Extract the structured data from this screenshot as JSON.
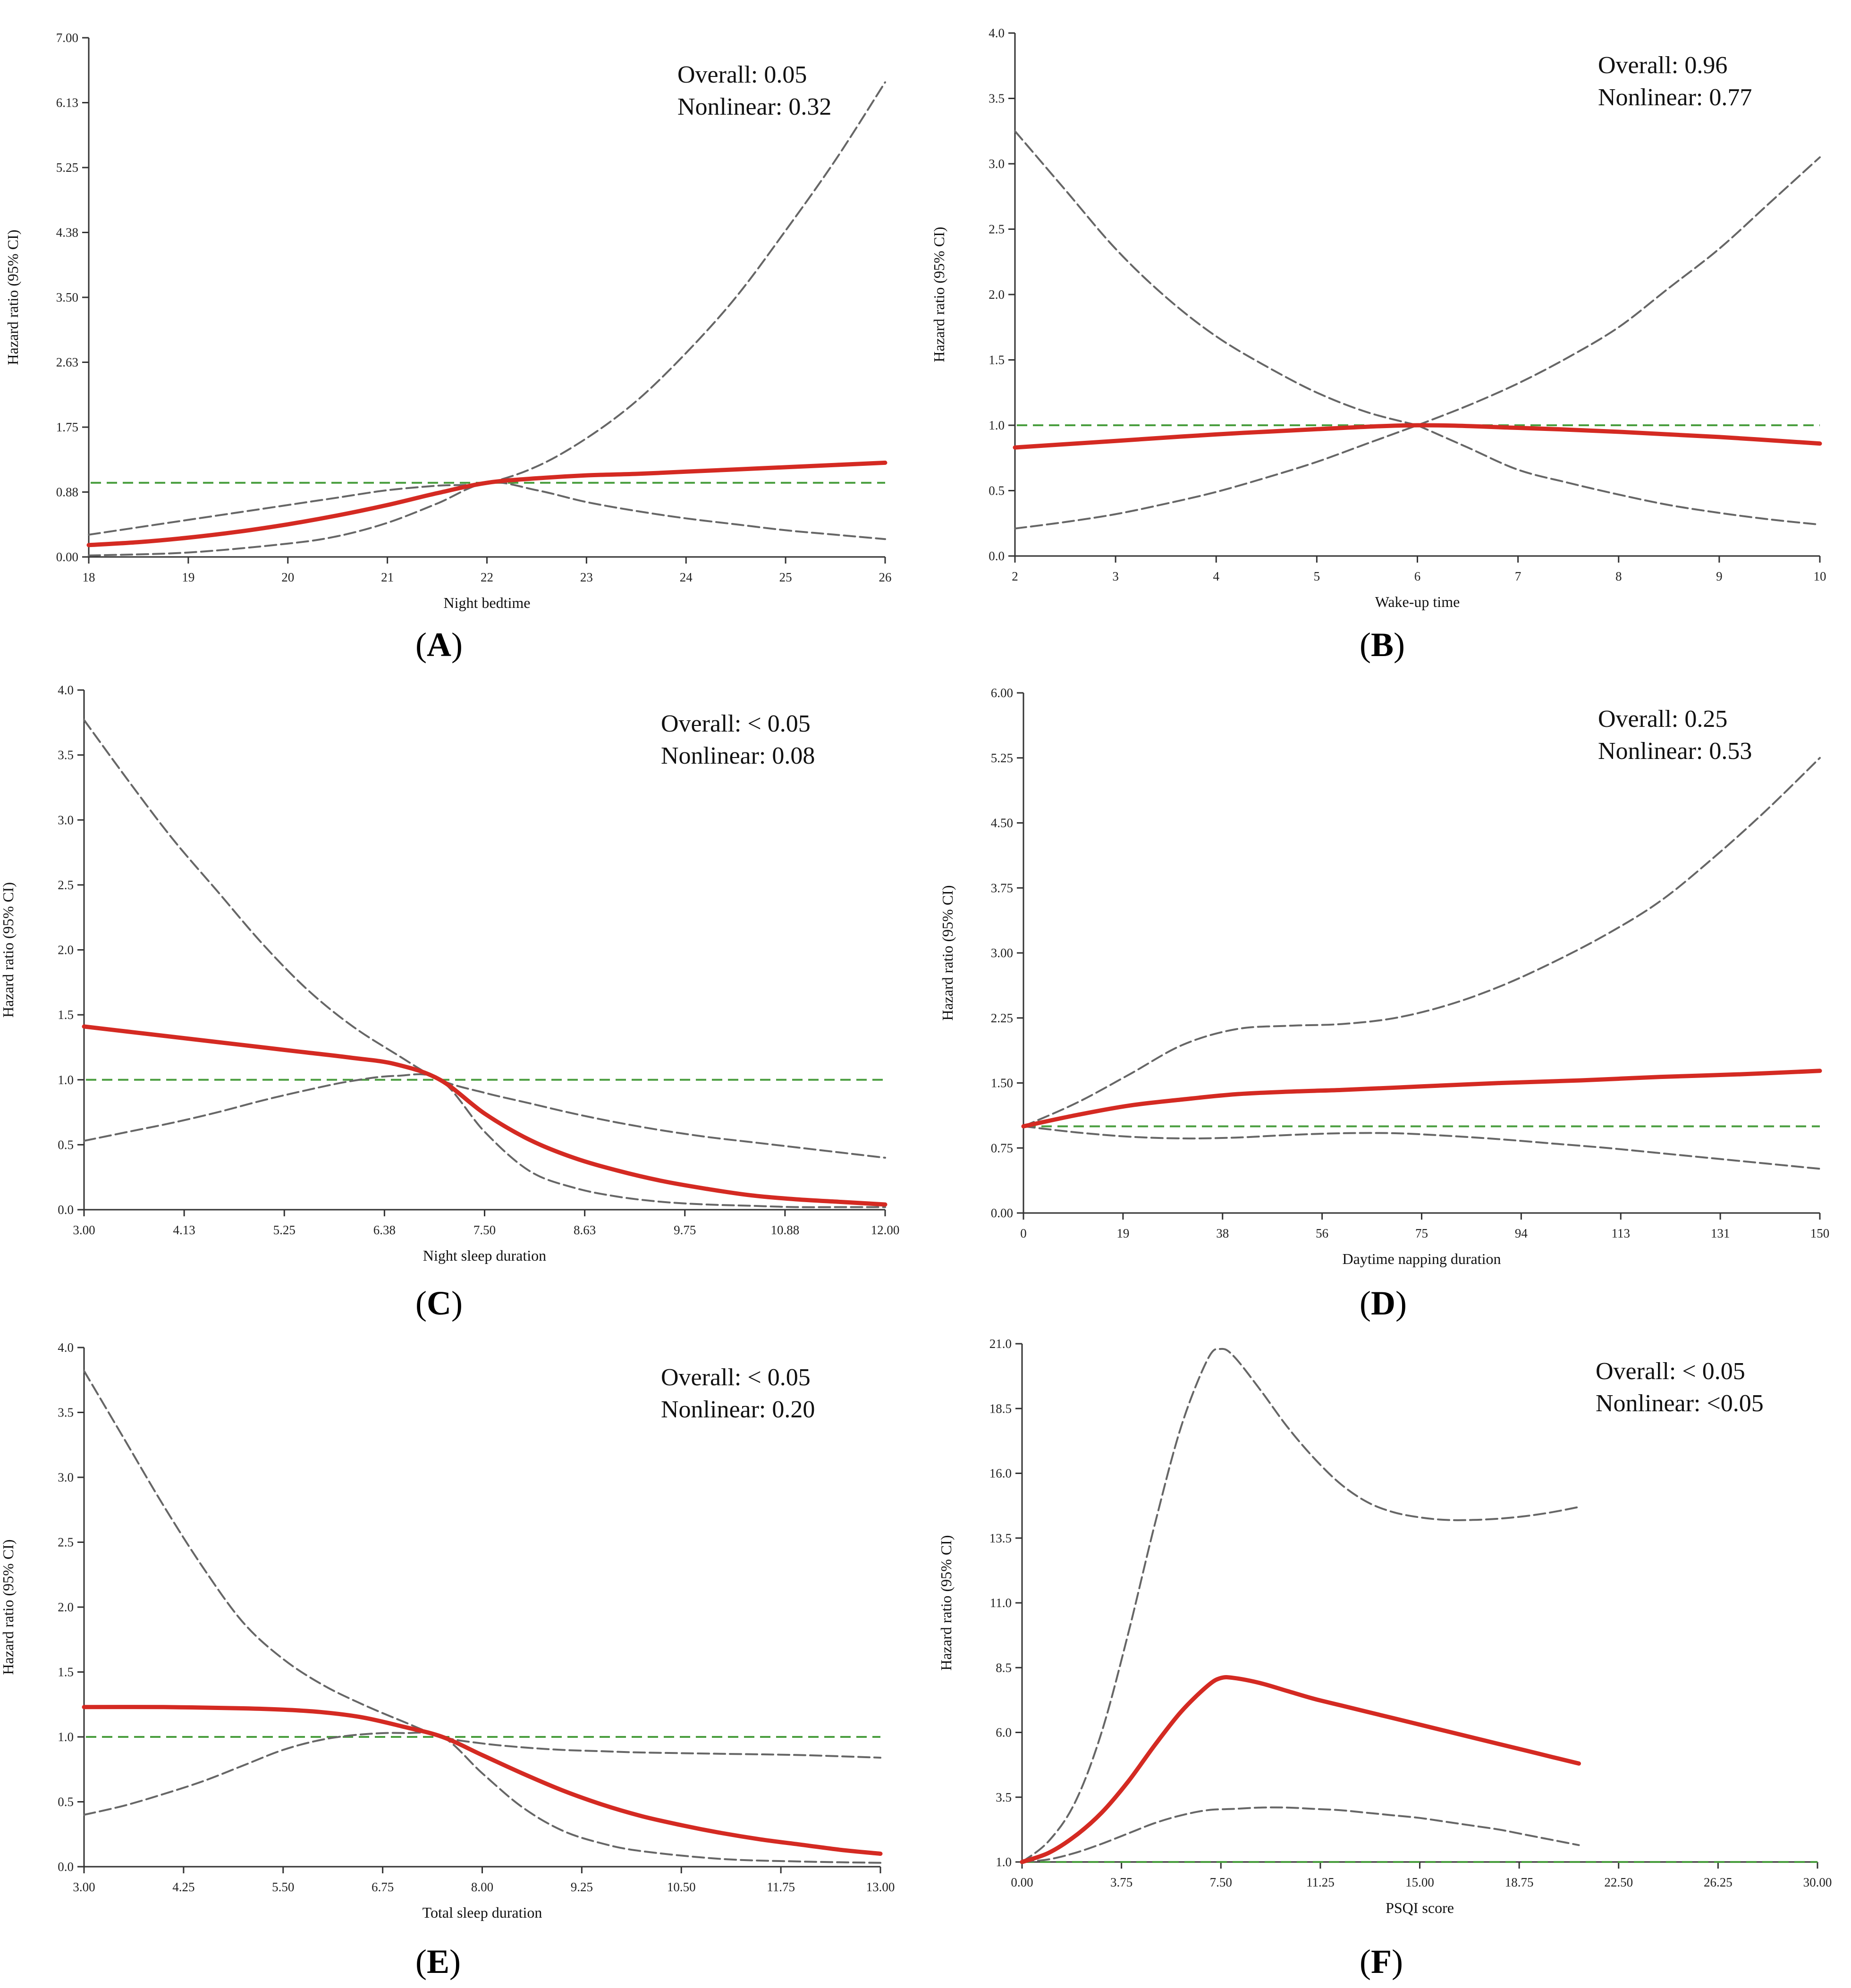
{
  "chart_data": [
    {
      "panel": "A",
      "type": "line",
      "xlabel": "Night bedtime",
      "ylabel": "Hazard ratio (95% CI)",
      "xlim": [
        18,
        26
      ],
      "ylim": [
        0,
        7
      ],
      "xticks": [
        "18",
        "19",
        "20",
        "21",
        "22",
        "23",
        "24",
        "25",
        "26"
      ],
      "xtick_values": [
        18,
        19,
        20,
        21,
        22,
        23,
        24,
        25,
        26
      ],
      "yticks": [
        "0.00",
        "0.88",
        "1.75",
        "2.63",
        "3.50",
        "4.38",
        "5.25",
        "6.13",
        "7.00"
      ],
      "ytick_values": [
        0,
        0.875,
        1.75,
        2.625,
        3.5,
        4.375,
        5.25,
        6.125,
        7
      ],
      "reference_line": 1.0,
      "annotations": [
        "Overall: 0.05",
        "Nonlinear: 0.32"
      ],
      "series": [
        {
          "role": "estimate",
          "x": [
            18,
            18.5,
            19,
            19.5,
            20,
            20.5,
            21,
            21.5,
            22,
            22.5,
            23,
            23.5,
            24,
            24.5,
            25,
            25.5,
            26
          ],
          "y": [
            0.16,
            0.2,
            0.26,
            0.34,
            0.44,
            0.56,
            0.7,
            0.86,
            1.0,
            1.06,
            1.1,
            1.12,
            1.15,
            1.18,
            1.21,
            1.24,
            1.27
          ]
        },
        {
          "role": "ci_upper",
          "x": [
            18,
            19,
            20,
            20.5,
            21,
            21.5,
            22,
            22.5,
            23,
            23.5,
            24,
            24.5,
            25,
            25.5,
            26
          ],
          "y": [
            0.3,
            0.5,
            0.7,
            0.8,
            0.9,
            0.96,
            1.0,
            1.22,
            1.6,
            2.1,
            2.75,
            3.5,
            4.4,
            5.35,
            6.4
          ]
        },
        {
          "role": "ci_lower",
          "x": [
            18,
            19,
            20,
            20.5,
            21,
            21.5,
            22,
            22.5,
            23,
            23.5,
            24,
            24.5,
            25,
            25.5,
            26
          ],
          "y": [
            0.02,
            0.06,
            0.18,
            0.28,
            0.46,
            0.72,
            1.0,
            0.9,
            0.74,
            0.62,
            0.52,
            0.44,
            0.36,
            0.3,
            0.24
          ]
        }
      ]
    },
    {
      "panel": "B",
      "type": "line",
      "xlabel": "Wake-up time",
      "ylabel": "Hazard ratio (95% CI)",
      "xlim": [
        2,
        10
      ],
      "ylim": [
        0,
        4
      ],
      "xticks": [
        "2",
        "3",
        "4",
        "5",
        "6",
        "7",
        "8",
        "9",
        "10"
      ],
      "xtick_values": [
        2,
        3,
        4,
        5,
        6,
        7,
        8,
        9,
        10
      ],
      "yticks": [
        "0.0",
        "0.5",
        "1.0",
        "1.5",
        "2.0",
        "2.5",
        "3.0",
        "3.5",
        "4.0"
      ],
      "ytick_values": [
        0,
        0.5,
        1,
        1.5,
        2,
        2.5,
        3,
        3.5,
        4
      ],
      "reference_line": 1.0,
      "annotations": [
        "Overall: 0.96",
        "Nonlinear: 0.77"
      ],
      "series": [
        {
          "role": "estimate",
          "x": [
            2,
            3,
            4,
            5,
            6,
            7,
            8,
            9,
            10
          ],
          "y": [
            0.83,
            0.88,
            0.93,
            0.97,
            1.0,
            0.98,
            0.95,
            0.91,
            0.86
          ]
        },
        {
          "role": "ci_upper",
          "x": [
            2,
            2.5,
            3,
            3.5,
            4,
            4.5,
            5,
            5.5,
            6
          ],
          "y": [
            3.25,
            2.8,
            2.35,
            1.98,
            1.68,
            1.45,
            1.25,
            1.1,
            1.0
          ]
        },
        {
          "role": "ci_upper",
          "x": [
            6,
            6.5,
            7,
            7.5,
            8,
            8.5,
            9,
            9.5,
            10
          ],
          "y": [
            1.0,
            1.15,
            1.32,
            1.52,
            1.75,
            2.05,
            2.35,
            2.7,
            3.05
          ]
        },
        {
          "role": "ci_lower",
          "x": [
            2,
            2.5,
            3,
            3.5,
            4,
            4.5,
            5,
            5.5,
            6
          ],
          "y": [
            0.21,
            0.26,
            0.32,
            0.4,
            0.49,
            0.6,
            0.72,
            0.86,
            1.0
          ]
        },
        {
          "role": "ci_lower",
          "x": [
            6,
            6.5,
            7,
            7.5,
            8,
            8.5,
            9,
            9.5,
            10
          ],
          "y": [
            1.0,
            0.83,
            0.66,
            0.56,
            0.47,
            0.39,
            0.33,
            0.28,
            0.24
          ]
        }
      ]
    },
    {
      "panel": "C",
      "type": "line",
      "xlabel": "Night sleep duration",
      "ylabel": "Hazard ratio (95% CI)",
      "xlim": [
        3,
        12
      ],
      "ylim": [
        0,
        4
      ],
      "xticks": [
        "3.00",
        "4.13",
        "5.25",
        "6.38",
        "7.50",
        "8.63",
        "9.75",
        "10.88",
        "12.00"
      ],
      "xtick_values": [
        3,
        4.125,
        5.25,
        6.375,
        7.5,
        8.625,
        9.75,
        10.875,
        12
      ],
      "yticks": [
        "0.0",
        "0.5",
        "1.0",
        "1.5",
        "2.0",
        "2.5",
        "3.0",
        "3.5",
        "4.0"
      ],
      "ytick_values": [
        0,
        0.5,
        1,
        1.5,
        2,
        2.5,
        3,
        3.5,
        4
      ],
      "reference_line": 1.0,
      "annotations": [
        "Overall: < 0.05",
        "Nonlinear: 0.08"
      ],
      "series": [
        {
          "role": "estimate",
          "x": [
            3,
            3.5,
            4,
            4.5,
            5,
            5.5,
            6,
            6.5,
            7,
            7.5,
            8,
            8.5,
            9,
            9.5,
            10,
            10.5,
            11,
            11.5,
            12
          ],
          "y": [
            1.41,
            1.37,
            1.33,
            1.29,
            1.25,
            1.21,
            1.17,
            1.12,
            1.0,
            0.74,
            0.54,
            0.4,
            0.3,
            0.22,
            0.16,
            0.11,
            0.08,
            0.06,
            0.04
          ]
        },
        {
          "role": "ci_upper",
          "x": [
            3,
            3.5,
            4,
            4.5,
            5,
            5.5,
            6,
            6.5,
            7,
            7.5,
            8,
            8.5,
            9,
            9.5,
            10,
            10.5,
            11,
            11.5,
            12
          ],
          "y": [
            3.77,
            3.3,
            2.85,
            2.45,
            2.05,
            1.7,
            1.42,
            1.2,
            1.0,
            0.9,
            0.82,
            0.74,
            0.67,
            0.61,
            0.56,
            0.52,
            0.48,
            0.44,
            0.4
          ]
        },
        {
          "role": "ci_lower",
          "x": [
            3,
            3.5,
            4,
            4.5,
            5,
            5.5,
            6,
            6.5,
            7,
            7.5,
            8,
            8.5,
            9,
            9.5,
            10,
            10.5,
            11,
            11.5,
            12
          ],
          "y": [
            0.53,
            0.6,
            0.67,
            0.75,
            0.84,
            0.92,
            0.99,
            1.03,
            1.0,
            0.6,
            0.3,
            0.17,
            0.1,
            0.06,
            0.04,
            0.03,
            0.02,
            0.02,
            0.02
          ]
        }
      ]
    },
    {
      "panel": "D",
      "type": "line",
      "xlabel": "Daytime napping duration",
      "ylabel": "Hazard ratio (95% CI)",
      "xlim": [
        0,
        150
      ],
      "ylim": [
        0,
        6
      ],
      "xticks": [
        "0",
        "19",
        "38",
        "56",
        "75",
        "94",
        "113",
        "131",
        "150"
      ],
      "xtick_values": [
        0,
        18.75,
        37.5,
        56.25,
        75,
        93.75,
        112.5,
        131.25,
        150
      ],
      "yticks": [
        "0.00",
        "0.75",
        "1.50",
        "2.25",
        "3.00",
        "3.75",
        "4.50",
        "5.25",
        "6.00"
      ],
      "ytick_values": [
        0,
        0.75,
        1.5,
        2.25,
        3,
        3.75,
        4.5,
        5.25,
        6
      ],
      "reference_line": 1.0,
      "annotations": [
        "Overall: 0.25",
        "Nonlinear: 0.53"
      ],
      "series": [
        {
          "role": "estimate",
          "x": [
            0,
            10,
            20,
            30,
            40,
            50,
            60,
            75,
            90,
            105,
            120,
            135,
            150
          ],
          "y": [
            1.0,
            1.13,
            1.24,
            1.31,
            1.37,
            1.4,
            1.42,
            1.46,
            1.5,
            1.53,
            1.57,
            1.6,
            1.64
          ]
        },
        {
          "role": "ci_upper",
          "x": [
            0,
            10,
            20,
            30,
            40,
            50,
            60,
            70,
            80,
            90,
            100,
            110,
            120,
            130,
            140,
            150
          ],
          "y": [
            1.0,
            1.27,
            1.6,
            1.94,
            2.12,
            2.16,
            2.18,
            2.25,
            2.4,
            2.62,
            2.9,
            3.22,
            3.6,
            4.1,
            4.65,
            5.25
          ]
        },
        {
          "role": "ci_lower",
          "x": [
            0,
            10,
            20,
            30,
            40,
            50,
            60,
            70,
            80,
            90,
            100,
            110,
            120,
            130,
            140,
            150
          ],
          "y": [
            1.0,
            0.93,
            0.88,
            0.86,
            0.87,
            0.9,
            0.92,
            0.92,
            0.89,
            0.85,
            0.8,
            0.75,
            0.69,
            0.63,
            0.57,
            0.51
          ]
        }
      ]
    },
    {
      "panel": "E",
      "type": "line",
      "xlabel": "Total sleep duration",
      "ylabel": "Hazard ratio (95% CI)",
      "xlim": [
        3,
        13
      ],
      "ylim": [
        0,
        4
      ],
      "xticks": [
        "3.00",
        "4.25",
        "5.50",
        "6.75",
        "8.00",
        "9.25",
        "10.50",
        "11.75",
        "13.00"
      ],
      "xtick_values": [
        3,
        4.25,
        5.5,
        6.75,
        8,
        9.25,
        10.5,
        11.75,
        13
      ],
      "yticks": [
        "0.0",
        "0.5",
        "1.0",
        "1.5",
        "2.0",
        "2.5",
        "3.0",
        "3.5",
        "4.0"
      ],
      "ytick_values": [
        0,
        0.5,
        1,
        1.5,
        2,
        2.5,
        3,
        3.5,
        4
      ],
      "reference_line": 1.0,
      "annotations": [
        "Overall: < 0.05",
        "Nonlinear: 0.20"
      ],
      "series": [
        {
          "role": "estimate",
          "x": [
            3,
            4,
            5,
            5.5,
            6,
            6.5,
            7,
            7.5,
            8,
            8.5,
            9,
            9.5,
            10,
            10.5,
            11,
            11.5,
            12,
            12.5,
            13
          ],
          "y": [
            1.23,
            1.23,
            1.22,
            1.21,
            1.19,
            1.15,
            1.08,
            1.0,
            0.86,
            0.72,
            0.59,
            0.48,
            0.39,
            0.32,
            0.26,
            0.21,
            0.17,
            0.13,
            0.1
          ]
        },
        {
          "role": "ci_upper",
          "x": [
            3,
            3.5,
            4,
            4.5,
            5,
            5.5,
            6,
            6.5,
            7,
            7.5,
            8,
            8.5,
            9,
            9.5,
            10,
            11,
            12,
            13
          ],
          "y": [
            3.82,
            3.3,
            2.78,
            2.3,
            1.88,
            1.6,
            1.4,
            1.25,
            1.12,
            1.0,
            0.95,
            0.92,
            0.9,
            0.89,
            0.88,
            0.87,
            0.86,
            0.84
          ]
        },
        {
          "role": "ci_lower",
          "x": [
            3,
            3.5,
            4,
            4.5,
            5,
            5.5,
            6,
            6.5,
            7,
            7.5,
            8,
            8.5,
            9,
            9.5,
            10,
            11,
            12,
            13
          ],
          "y": [
            0.4,
            0.47,
            0.56,
            0.66,
            0.78,
            0.9,
            0.98,
            1.02,
            1.03,
            1.0,
            0.72,
            0.46,
            0.28,
            0.18,
            0.12,
            0.06,
            0.04,
            0.03
          ]
        }
      ]
    },
    {
      "panel": "F",
      "type": "line",
      "xlabel": "PSQI score",
      "ylabel": "Hazard ratio (95% CI)",
      "xlim": [
        0,
        30
      ],
      "ylim": [
        1,
        21
      ],
      "xticks": [
        "0.00",
        "3.75",
        "7.50",
        "11.25",
        "15.00",
        "18.75",
        "22.50",
        "26.25",
        "30.00"
      ],
      "xtick_values": [
        0,
        3.75,
        7.5,
        11.25,
        15,
        18.75,
        22.5,
        26.25,
        30
      ],
      "yticks": [
        "1.0",
        "3.5",
        "6.0",
        "8.5",
        "11.0",
        "13.5",
        "16.0",
        "18.5",
        "21.0"
      ],
      "ytick_values": [
        1,
        3.5,
        6,
        8.5,
        11,
        13.5,
        16,
        18.5,
        21
      ],
      "reference_line": 1.0,
      "annotations": [
        "Overall: < 0.05",
        "Nonlinear: <0.05"
      ],
      "series": [
        {
          "role": "estimate",
          "x": [
            0,
            1,
            2,
            3,
            4,
            5,
            6,
            7,
            7.5,
            8,
            9,
            10,
            11,
            12,
            13,
            14,
            15,
            16,
            17,
            18,
            19,
            20,
            21
          ],
          "y": [
            1.0,
            1.35,
            2.0,
            2.9,
            4.1,
            5.5,
            6.8,
            7.8,
            8.1,
            8.1,
            7.9,
            7.6,
            7.3,
            7.05,
            6.8,
            6.55,
            6.3,
            6.05,
            5.8,
            5.55,
            5.3,
            5.05,
            4.8
          ]
        },
        {
          "role": "ci_upper",
          "x": [
            0,
            1,
            2,
            3,
            4,
            5,
            6,
            7,
            7.5,
            8,
            9,
            10,
            11,
            12,
            13,
            14,
            15,
            16,
            17,
            18,
            19,
            20,
            21
          ],
          "y": [
            1.0,
            1.8,
            3.3,
            6.0,
            9.8,
            14.0,
            17.8,
            20.4,
            20.8,
            20.5,
            19.2,
            17.8,
            16.6,
            15.6,
            14.9,
            14.5,
            14.3,
            14.2,
            14.2,
            14.25,
            14.35,
            14.5,
            14.7
          ]
        },
        {
          "role": "ci_lower",
          "x": [
            0,
            1,
            2,
            3,
            4,
            5,
            6,
            7,
            8,
            9,
            10,
            11,
            12,
            13,
            14,
            15,
            16,
            17,
            18,
            19,
            20,
            21
          ],
          "y": [
            1.0,
            1.1,
            1.35,
            1.7,
            2.1,
            2.5,
            2.8,
            3.0,
            3.05,
            3.1,
            3.1,
            3.05,
            3.0,
            2.9,
            2.8,
            2.7,
            2.55,
            2.4,
            2.25,
            2.05,
            1.85,
            1.65
          ]
        }
      ]
    }
  ],
  "panel_labels": [
    {
      "letter": "A",
      "open": "(",
      "close": ")"
    },
    {
      "letter": "B",
      "open": "(",
      "close": ")"
    },
    {
      "letter": "C",
      "open": "(",
      "close": ")"
    },
    {
      "letter": "D",
      "open": "(",
      "close": ")"
    },
    {
      "letter": "E",
      "open": "(",
      "close": ")"
    },
    {
      "letter": "F",
      "open": "(",
      "close": ")"
    }
  ],
  "colors": {
    "estimate": "#d42a22",
    "confidence_interval": "#666666",
    "reference_line": "#4a9e3f",
    "axis": "#333333"
  }
}
